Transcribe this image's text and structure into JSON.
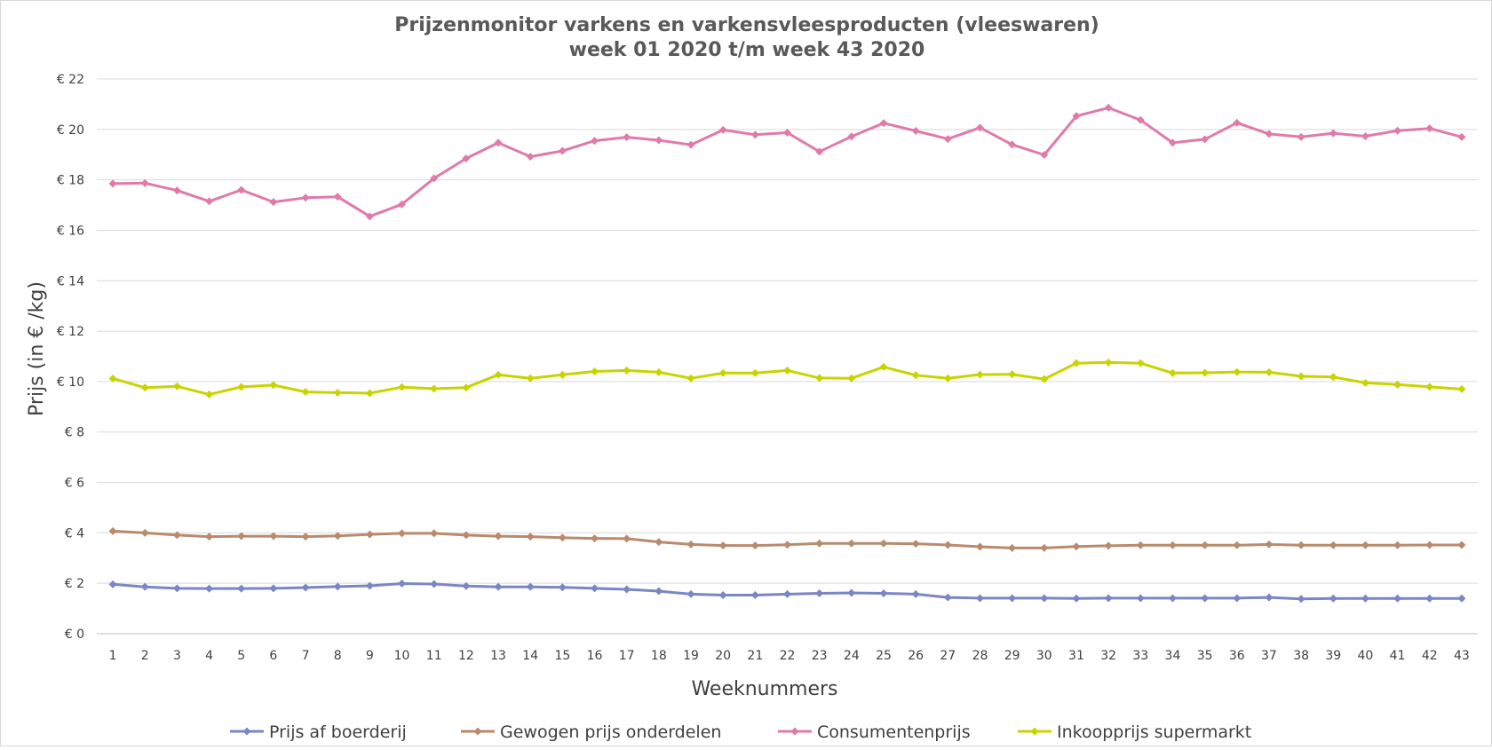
{
  "chart_data": {
    "type": "line",
    "title_line1": "Prijzenmonitor varkens en varkensvleesproducten (vleeswaren)",
    "title_line2": "week 01 2020 t/m week 43 2020",
    "xlabel": "Weeknummers",
    "ylabel": "Prijs (in € /kg)",
    "ylim": [
      0,
      22
    ],
    "yticks": [
      {
        "value": 0,
        "label": "€ 0"
      },
      {
        "value": 2,
        "label": "€ 2"
      },
      {
        "value": 4,
        "label": "€ 4"
      },
      {
        "value": 6,
        "label": "€ 6"
      },
      {
        "value": 8,
        "label": "€ 8"
      },
      {
        "value": 10,
        "label": "€ 10"
      },
      {
        "value": 12,
        "label": "€ 12"
      },
      {
        "value": 14,
        "label": "€ 14"
      },
      {
        "value": 16,
        "label": "€ 16"
      },
      {
        "value": 18,
        "label": "€ 18"
      },
      {
        "value": 20,
        "label": "€ 20"
      },
      {
        "value": 22,
        "label": "€ 22"
      }
    ],
    "categories": [
      "1",
      "2",
      "3",
      "4",
      "5",
      "6",
      "7",
      "8",
      "9",
      "10",
      "11",
      "12",
      "13",
      "14",
      "15",
      "16",
      "17",
      "18",
      "19",
      "20",
      "21",
      "22",
      "23",
      "24",
      "25",
      "26",
      "27",
      "28",
      "29",
      "30",
      "31",
      "32",
      "33",
      "34",
      "35",
      "36",
      "37",
      "38",
      "39",
      "40",
      "41",
      "42",
      "43"
    ],
    "grid": true,
    "legend_position": "bottom",
    "series": [
      {
        "name": "Prijs af boerderij",
        "color": "#7b86c4",
        "values": [
          1.96,
          1.86,
          1.8,
          1.79,
          1.79,
          1.8,
          1.83,
          1.87,
          1.9,
          1.99,
          1.97,
          1.89,
          1.86,
          1.86,
          1.84,
          1.8,
          1.76,
          1.69,
          1.57,
          1.53,
          1.53,
          1.57,
          1.6,
          1.62,
          1.6,
          1.57,
          1.44,
          1.41,
          1.41,
          1.41,
          1.4,
          1.41,
          1.41,
          1.41,
          1.41,
          1.41,
          1.44,
          1.38,
          1.4,
          1.4,
          1.4,
          1.4,
          1.4
        ]
      },
      {
        "name": "Gewogen prijs onderdelen",
        "color": "#b98a6e",
        "values": [
          4.07,
          4.0,
          3.91,
          3.85,
          3.87,
          3.87,
          3.85,
          3.88,
          3.94,
          3.98,
          3.98,
          3.91,
          3.87,
          3.85,
          3.81,
          3.78,
          3.77,
          3.64,
          3.54,
          3.5,
          3.5,
          3.53,
          3.58,
          3.58,
          3.58,
          3.57,
          3.52,
          3.45,
          3.4,
          3.4,
          3.46,
          3.49,
          3.51,
          3.51,
          3.51,
          3.51,
          3.54,
          3.51,
          3.51,
          3.51,
          3.51,
          3.52,
          3.52
        ]
      },
      {
        "name": "Consumentenprijs",
        "color": "#e07aaa",
        "values": [
          17.85,
          17.87,
          17.58,
          17.15,
          17.6,
          17.12,
          17.29,
          17.33,
          16.55,
          17.03,
          18.06,
          18.85,
          19.47,
          18.92,
          19.15,
          19.55,
          19.69,
          19.57,
          19.39,
          19.98,
          19.79,
          19.87,
          19.12,
          19.72,
          20.25,
          19.94,
          19.62,
          20.07,
          19.4,
          18.99,
          20.53,
          20.86,
          20.37,
          19.47,
          19.61,
          20.26,
          19.82,
          19.7,
          19.85,
          19.73,
          19.95,
          20.04,
          19.7
        ]
      },
      {
        "name": "Inkoopprijs supermarkt",
        "color": "#c8d400",
        "values": [
          10.12,
          9.76,
          9.81,
          9.49,
          9.79,
          9.86,
          9.59,
          9.56,
          9.54,
          9.78,
          9.72,
          9.76,
          10.27,
          10.13,
          10.27,
          10.4,
          10.44,
          10.37,
          10.13,
          10.34,
          10.34,
          10.44,
          10.14,
          10.13,
          10.58,
          10.25,
          10.13,
          10.28,
          10.29,
          10.1,
          10.73,
          10.76,
          10.73,
          10.34,
          10.35,
          10.38,
          10.37,
          10.21,
          10.18,
          9.95,
          9.88,
          9.79,
          9.7
        ]
      }
    ]
  }
}
